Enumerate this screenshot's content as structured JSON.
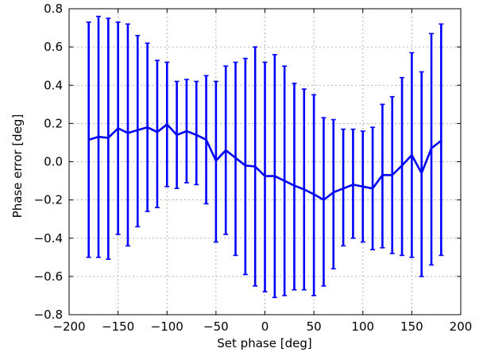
{
  "chart_data": {
    "type": "line",
    "title": "",
    "xlabel": "Set phase [deg]",
    "ylabel": "Phase error [deg]",
    "xlim": [
      -200,
      200
    ],
    "ylim": [
      -0.8,
      0.8
    ],
    "xticks": [
      -200,
      -150,
      -100,
      -50,
      0,
      50,
      100,
      150,
      200
    ],
    "yticks": [
      -0.8,
      -0.6,
      -0.4,
      -0.2,
      0.0,
      0.2,
      0.4,
      0.6,
      0.8
    ],
    "xtick_labels": [
      "−200",
      "−150",
      "−100",
      "−50",
      "0",
      "50",
      "100",
      "150",
      "200"
    ],
    "ytick_labels": [
      "−0.8",
      "−0.6",
      "−0.4",
      "−0.2",
      "0.0",
      "0.2",
      "0.4",
      "0.6",
      "0.8"
    ],
    "grid": true,
    "legend": "none",
    "series": [
      {
        "color": "#0000ff",
        "error_bars": true,
        "x": [
          -180,
          -170,
          -160,
          -150,
          -140,
          -130,
          -120,
          -110,
          -100,
          -90,
          -80,
          -70,
          -60,
          -50,
          -40,
          -30,
          -20,
          -10,
          0,
          10,
          20,
          30,
          40,
          50,
          60,
          70,
          80,
          90,
          100,
          110,
          120,
          130,
          140,
          150,
          160,
          170,
          180
        ],
        "y": [
          0.115,
          0.13,
          0.125,
          0.175,
          0.15,
          0.165,
          0.18,
          0.155,
          0.195,
          0.14,
          0.16,
          0.14,
          0.115,
          0.005,
          0.06,
          0.02,
          -0.02,
          -0.025,
          -0.075,
          -0.075,
          -0.1,
          -0.125,
          -0.145,
          -0.17,
          -0.2,
          -0.16,
          -0.14,
          -0.12,
          -0.13,
          -0.14,
          -0.07,
          -0.07,
          -0.02,
          0.035,
          -0.06,
          0.07,
          0.11
        ],
        "y_upper": [
          0.73,
          0.76,
          0.75,
          0.73,
          0.72,
          0.66,
          0.62,
          0.53,
          0.52,
          0.42,
          0.43,
          0.42,
          0.45,
          0.42,
          0.5,
          0.52,
          0.54,
          0.6,
          0.52,
          0.56,
          0.5,
          0.41,
          0.38,
          0.35,
          0.23,
          0.22,
          0.17,
          0.17,
          0.16,
          0.18,
          0.3,
          0.34,
          0.44,
          0.57,
          0.47,
          0.67,
          0.72
        ],
        "y_lower": [
          -0.5,
          -0.5,
          -0.51,
          -0.38,
          -0.44,
          -0.34,
          -0.26,
          -0.24,
          -0.13,
          -0.14,
          -0.11,
          -0.12,
          -0.22,
          -0.42,
          -0.38,
          -0.49,
          -0.59,
          -0.65,
          -0.68,
          -0.71,
          -0.7,
          -0.67,
          -0.67,
          -0.7,
          -0.65,
          -0.56,
          -0.44,
          -0.4,
          -0.42,
          -0.46,
          -0.45,
          -0.48,
          -0.49,
          -0.5,
          -0.6,
          -0.54,
          -0.49
        ]
      }
    ]
  }
}
